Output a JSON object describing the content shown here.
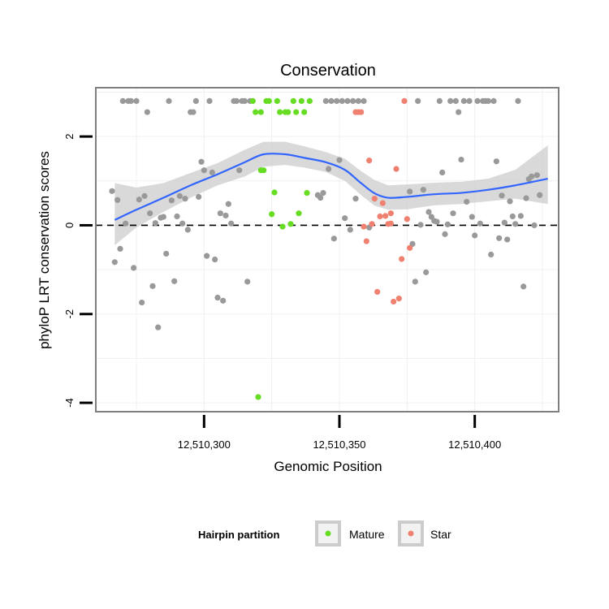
{
  "chart_data": {
    "type": "scatter",
    "title": "Conservation",
    "xlabel": "Genomic Position",
    "ylabel": "phyloP LRT conservation scores",
    "xlim": [
      12510260,
      12510431
    ],
    "ylim": [
      -4.2,
      3.1
    ],
    "x_ticks": [
      12510300,
      12510350,
      12510400
    ],
    "x_tick_labels": [
      "12,510,300",
      "12,510,350",
      "12,510,400"
    ],
    "y_ticks": [
      -4,
      -2,
      0,
      2
    ],
    "y_tick_labels": [
      "-4",
      "-2",
      "0",
      "2"
    ],
    "reference_line_y": 0,
    "legend": {
      "title": "Hairpin partition",
      "entries": [
        {
          "label": "Mature",
          "color": "#66dd22"
        },
        {
          "label": "Star",
          "color": "#f08070"
        }
      ]
    },
    "colors": {
      "other": "#999999",
      "mature": "#66dd22",
      "star": "#f08070",
      "smooth": "#3366ff",
      "band": "#cccccc"
    },
    "smooth": {
      "x": [
        12510267,
        12510275,
        12510285,
        12510295,
        12510305,
        12510315,
        12510322,
        12510330,
        12510337,
        12510345,
        12510352,
        12510358,
        12510363,
        12510368,
        12510375,
        12510385,
        12510395,
        12510405,
        12510415,
        12510427
      ],
      "y": [
        0.12,
        0.35,
        0.62,
        0.9,
        1.15,
        1.42,
        1.6,
        1.6,
        1.52,
        1.42,
        1.25,
        0.95,
        0.72,
        0.62,
        0.64,
        0.7,
        0.73,
        0.8,
        0.9,
        1.05
      ],
      "lower": [
        -0.45,
        -0.05,
        0.3,
        0.62,
        0.9,
        1.1,
        1.32,
        1.36,
        1.3,
        1.2,
        1.0,
        0.68,
        0.44,
        0.35,
        0.36,
        0.45,
        0.48,
        0.54,
        0.6,
        0.48
      ],
      "upper": [
        0.95,
        0.85,
        0.95,
        1.18,
        1.4,
        1.7,
        1.88,
        1.88,
        1.78,
        1.65,
        1.5,
        1.22,
        1.02,
        0.9,
        0.92,
        0.96,
        0.98,
        1.05,
        1.25,
        1.8
      ]
    },
    "series": [
      {
        "name": "Other",
        "points": [
          [
            12510266,
            0.77
          ],
          [
            12510267,
            -0.83
          ],
          [
            12510268,
            0.57
          ],
          [
            12510269,
            -0.53
          ],
          [
            12510270,
            2.8
          ],
          [
            12510271,
            0.04
          ],
          [
            12510272,
            2.8
          ],
          [
            12510273,
            2.8
          ],
          [
            12510274,
            -0.96
          ],
          [
            12510275,
            2.8
          ],
          [
            12510276,
            0.58
          ],
          [
            12510277,
            -1.74
          ],
          [
            12510278,
            0.66
          ],
          [
            12510279,
            2.55
          ],
          [
            12510280,
            0.27
          ],
          [
            12510281,
            -1.37
          ],
          [
            12510282,
            0.05
          ],
          [
            12510283,
            -2.3
          ],
          [
            12510284,
            0.17
          ],
          [
            12510285,
            0.19
          ],
          [
            12510286,
            -0.64
          ],
          [
            12510287,
            2.8
          ],
          [
            12510288,
            0.56
          ],
          [
            12510289,
            -1.26
          ],
          [
            12510290,
            0.2
          ],
          [
            12510291,
            0.66
          ],
          [
            12510292,
            0.04
          ],
          [
            12510293,
            0.6
          ],
          [
            12510294,
            -0.1
          ],
          [
            12510295,
            2.55
          ],
          [
            12510296,
            2.55
          ],
          [
            12510297,
            2.8
          ],
          [
            12510298,
            0.64
          ],
          [
            12510299,
            1.43
          ],
          [
            12510300,
            1.24
          ],
          [
            12510301,
            -0.69
          ],
          [
            12510302,
            2.8
          ],
          [
            12510303,
            1.19
          ],
          [
            12510304,
            -0.77
          ],
          [
            12510305,
            -1.63
          ],
          [
            12510306,
            0.27
          ],
          [
            12510307,
            -1.7
          ],
          [
            12510308,
            0.22
          ],
          [
            12510309,
            0.48
          ],
          [
            12510310,
            0.04
          ],
          [
            12510311,
            2.8
          ],
          [
            12510312,
            2.8
          ],
          [
            12510313,
            1.24
          ],
          [
            12510314,
            2.8
          ],
          [
            12510315,
            2.8
          ],
          [
            12510316,
            -1.27
          ],
          [
            12510317,
            2.8
          ],
          [
            12510342,
            0.68
          ],
          [
            12510343,
            0.62
          ],
          [
            12510344,
            0.73
          ],
          [
            12510345,
            2.8
          ],
          [
            12510346,
            1.27
          ],
          [
            12510347,
            2.8
          ],
          [
            12510348,
            -0.3
          ],
          [
            12510349,
            2.8
          ],
          [
            12510350,
            1.47
          ],
          [
            12510351,
            2.8
          ],
          [
            12510352,
            0.16
          ],
          [
            12510353,
            2.8
          ],
          [
            12510354,
            -0.1
          ],
          [
            12510355,
            2.8
          ],
          [
            12510356,
            0.6
          ],
          [
            12510357,
            2.8
          ],
          [
            12510359,
            2.8
          ],
          [
            12510361,
            -0.05
          ],
          [
            12510376,
            0.76
          ],
          [
            12510377,
            -0.42
          ],
          [
            12510378,
            -1.27
          ],
          [
            12510379,
            2.8
          ],
          [
            12510380,
            0.01
          ],
          [
            12510381,
            0.8
          ],
          [
            12510382,
            -1.06
          ],
          [
            12510383,
            0.3
          ],
          [
            12510384,
            0.19
          ],
          [
            12510385,
            0.1
          ],
          [
            12510386,
            0.08
          ],
          [
            12510387,
            2.8
          ],
          [
            12510388,
            1.19
          ],
          [
            12510389,
            -0.2
          ],
          [
            12510390,
            0.02
          ],
          [
            12510391,
            2.8
          ],
          [
            12510392,
            0.27
          ],
          [
            12510393,
            2.8
          ],
          [
            12510394,
            2.55
          ],
          [
            12510395,
            1.48
          ],
          [
            12510396,
            2.8
          ],
          [
            12510397,
            0.53
          ],
          [
            12510398,
            2.8
          ],
          [
            12510399,
            0.19
          ],
          [
            12510400,
            -0.23
          ],
          [
            12510401,
            2.8
          ],
          [
            12510402,
            0.04
          ],
          [
            12510403,
            2.8
          ],
          [
            12510404,
            2.8
          ],
          [
            12510405,
            2.8
          ],
          [
            12510406,
            -0.66
          ],
          [
            12510407,
            2.8
          ],
          [
            12510408,
            1.44
          ],
          [
            12510409,
            -0.29
          ],
          [
            12510410,
            0.67
          ],
          [
            12510411,
            0.06
          ],
          [
            12510412,
            -0.32
          ],
          [
            12510413,
            0.54
          ],
          [
            12510414,
            0.2
          ],
          [
            12510415,
            0.03
          ],
          [
            12510416,
            2.8
          ],
          [
            12510417,
            0.21
          ],
          [
            12510418,
            -1.38
          ],
          [
            12510419,
            0.61
          ],
          [
            12510420,
            1.04
          ],
          [
            12510421,
            1.1
          ],
          [
            12510422,
            0.0
          ],
          [
            12510423,
            1.13
          ],
          [
            12510424,
            0.68
          ]
        ]
      },
      {
        "name": "Mature",
        "points": [
          [
            12510318,
            2.8
          ],
          [
            12510319,
            2.55
          ],
          [
            12510320,
            -3.87
          ],
          [
            12510321,
            1.24
          ],
          [
            12510321,
            2.55
          ],
          [
            12510322,
            1.24
          ],
          [
            12510323,
            2.8
          ],
          [
            12510324,
            2.8
          ],
          [
            12510325,
            0.25
          ],
          [
            12510326,
            0.74
          ],
          [
            12510327,
            2.8
          ],
          [
            12510328,
            2.55
          ],
          [
            12510329,
            -0.03
          ],
          [
            12510330,
            2.55
          ],
          [
            12510331,
            2.55
          ],
          [
            12510332,
            0.03
          ],
          [
            12510333,
            2.8
          ],
          [
            12510334,
            2.55
          ],
          [
            12510335,
            0.27
          ],
          [
            12510336,
            2.8
          ],
          [
            12510337,
            2.55
          ],
          [
            12510338,
            0.73
          ],
          [
            12510339,
            2.8
          ]
        ]
      },
      {
        "name": "Star",
        "points": [
          [
            12510356,
            2.55
          ],
          [
            12510357,
            2.55
          ],
          [
            12510358,
            2.55
          ],
          [
            12510359,
            -0.03
          ],
          [
            12510360,
            -0.36
          ],
          [
            12510361,
            1.46
          ],
          [
            12510362,
            0.03
          ],
          [
            12510363,
            0.6
          ],
          [
            12510364,
            -1.5
          ],
          [
            12510365,
            0.2
          ],
          [
            12510366,
            0.5
          ],
          [
            12510367,
            0.21
          ],
          [
            12510368,
            0.03
          ],
          [
            12510369,
            0.27
          ],
          [
            12510370,
            -1.72
          ],
          [
            12510371,
            1.27
          ],
          [
            12510372,
            -1.65
          ],
          [
            12510373,
            -0.76
          ],
          [
            12510374,
            2.8
          ],
          [
            12510375,
            0.14
          ],
          [
            12510376,
            -0.51
          ],
          [
            12510369,
            0.04
          ]
        ]
      }
    ]
  }
}
